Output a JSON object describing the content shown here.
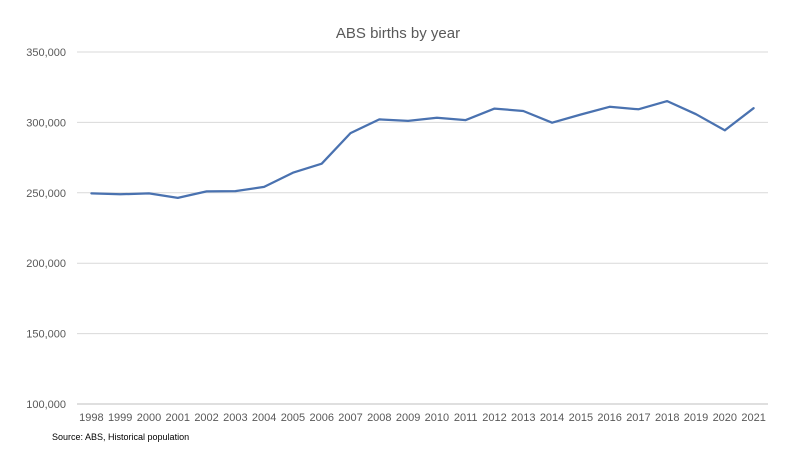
{
  "chart_data": {
    "type": "line",
    "title": "ABS births by year",
    "xlabel": "",
    "ylabel": "",
    "x": [
      "1998",
      "1999",
      "2000",
      "2001",
      "2002",
      "2003",
      "2004",
      "2005",
      "2006",
      "2007",
      "2008",
      "2009",
      "2010",
      "2011",
      "2012",
      "2013",
      "2014",
      "2015",
      "2016",
      "2017",
      "2018",
      "2019",
      "2020",
      "2021"
    ],
    "series": [
      {
        "values": [
          249600,
          248900,
          249600,
          246400,
          251000,
          251200,
          254200,
          264300,
          270700,
          292400,
          302100,
          301100,
          303300,
          301600,
          309800,
          308100,
          299800,
          305600,
          311100,
          309300,
          315100,
          305800,
          294400,
          310100
        ],
        "color": "#4a72b0"
      }
    ],
    "ylim": [
      100000,
      350000
    ],
    "yticks": [
      "100,000",
      "150,000",
      "200,000",
      "250,000",
      "300,000",
      "350,000"
    ],
    "grid": true,
    "legend": "none",
    "colors": {
      "line": "#4a72b0",
      "grid": "#d9d9d9",
      "axis": "#bfbfbf",
      "text": "#595959"
    }
  },
  "source_note": "Source: ABS, Historical population"
}
